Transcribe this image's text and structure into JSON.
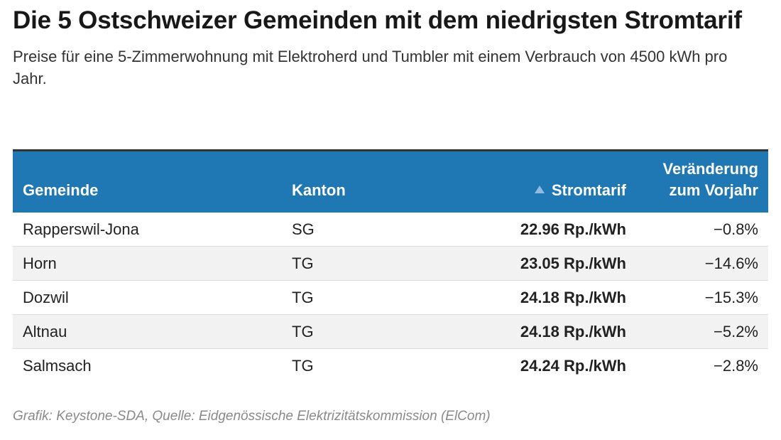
{
  "chart_data": {
    "type": "table",
    "title": "Die 5 Ostschweizer Gemeinden mit dem niedrigsten Stromtarif",
    "subtitle": "Preise für eine 5-Zimmerwohnung mit Elektroherd und Tumbler mit einem Verbrauch von 4500 kWh pro Jahr.",
    "columns": [
      "Gemeinde",
      "Kanton",
      "Stromtarif",
      "Veränderung zum Vorjahr"
    ],
    "sort": {
      "column": "Stromtarif",
      "direction": "ascending"
    },
    "rows": [
      {
        "gemeinde": "Rapperswil-Jona",
        "kanton": "SG",
        "stromtarif": "22.96 Rp./kWh",
        "veraenderung": "−0.8%"
      },
      {
        "gemeinde": "Horn",
        "kanton": "TG",
        "stromtarif": "23.05 Rp./kWh",
        "veraenderung": "−14.6%"
      },
      {
        "gemeinde": "Dozwil",
        "kanton": "TG",
        "stromtarif": "24.18 Rp./kWh",
        "veraenderung": "−15.3%"
      },
      {
        "gemeinde": "Altnau",
        "kanton": "TG",
        "stromtarif": "24.18 Rp./kWh",
        "veraenderung": "−5.2%"
      },
      {
        "gemeinde": "Salmsach",
        "kanton": "TG",
        "stromtarif": "24.24 Rp./kWh",
        "veraenderung": "−2.8%"
      }
    ],
    "source": "Grafik: Keystone-SDA, Quelle: Eidgenössische Elektrizitätskommission (ElCom)"
  },
  "colors": {
    "header_background": "#1f77b4",
    "header_text": "#ffffff",
    "stripe": "#f2f2f2"
  },
  "icons": {
    "sort": "sort-ascending-icon"
  }
}
